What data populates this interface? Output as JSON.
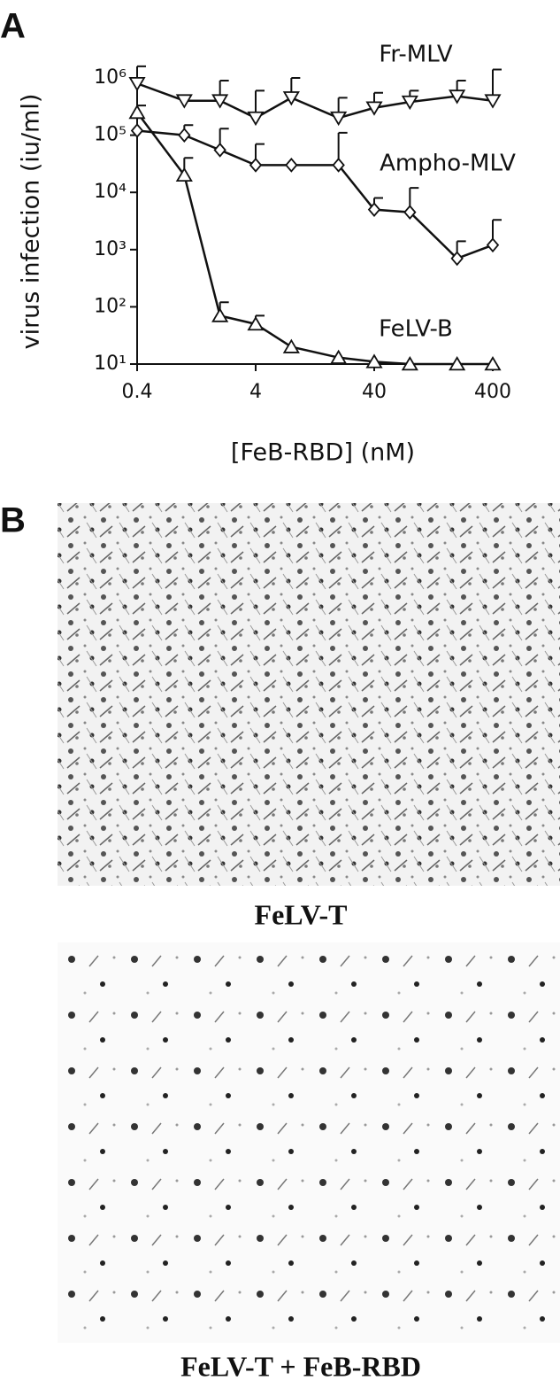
{
  "chart_data": {
    "type": "line",
    "ylabel": "virus infection (iu/ml)",
    "xlabel": "[FeB-RBD] (nM)",
    "x": [
      0.4,
      1,
      2,
      4,
      8,
      20,
      40,
      80,
      200,
      400
    ],
    "xlim": [
      0.4,
      400
    ],
    "xticks": [
      0.4,
      4,
      40,
      400
    ],
    "xscale": "log",
    "ylim": [
      10,
      1000000
    ],
    "yscale": "log",
    "yticks": [
      {
        "value": 10,
        "label": "10¹"
      },
      {
        "value": 100,
        "label": "10²"
      },
      {
        "value": 1000,
        "label": "10³"
      },
      {
        "value": 10000,
        "label": "10⁴"
      },
      {
        "value": 100000,
        "label": "10⁵"
      },
      {
        "value": 1000000,
        "label": "10⁶"
      }
    ],
    "series": [
      {
        "name": "Fr-MLV",
        "color": "#111111",
        "marker": "triangle-down",
        "values": [
          800000,
          400000,
          400000,
          200000,
          450000,
          200000,
          300000,
          380000,
          480000,
          400000
        ],
        "errors": [
          800000,
          null,
          500000,
          400000,
          550000,
          250000,
          250000,
          220000,
          420000,
          1000000
        ]
      },
      {
        "name": "Ampho-MLV",
        "color": "#111111",
        "marker": "diamond",
        "values": [
          120000,
          100000,
          55000,
          30000,
          30000,
          30000,
          5000,
          4500,
          700,
          1200
        ],
        "errors": [
          null,
          50000,
          75000,
          40000,
          null,
          80000,
          3000,
          7500,
          700,
          2100
        ]
      },
      {
        "name": "FeLV-B",
        "color": "#111111",
        "marker": "triangle-up",
        "values": [
          250000,
          20000,
          70,
          50,
          20,
          13,
          11,
          10,
          10,
          10
        ],
        "errors": [
          80000,
          20000,
          50,
          20,
          null,
          null,
          null,
          null,
          null,
          null
        ]
      }
    ]
  },
  "panel_labels": [
    "A",
    "B"
  ],
  "images": [
    {
      "caption": "FeLV-T"
    },
    {
      "caption": "FeLV-T + FeB-RBD"
    }
  ]
}
